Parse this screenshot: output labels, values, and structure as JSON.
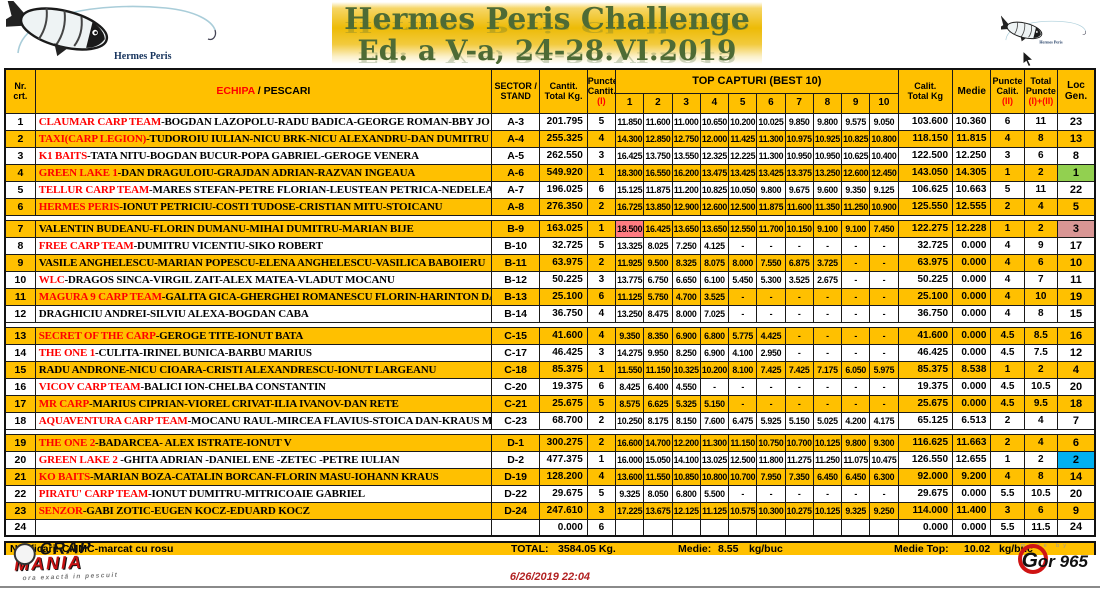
{
  "colors": {
    "accent_orange": "#FFC000",
    "team_red": "#FF0000",
    "rank1_green": "#92D050",
    "rank2_cyan": "#00B0F0",
    "rank3_rose": "#D99694",
    "big_fish_red": "#FF7C80",
    "title_green": "#4E6B35"
  },
  "header": {
    "title_line1": "Hermes Peris Challenge",
    "title_line2": "Ed. a V-a, 24-28.VI.2019",
    "logo_left_label": "Hermes Peris",
    "logo_right_label": "Hermes Peris"
  },
  "table": {
    "headers": {
      "nr": "Nr.\ncrt.",
      "echipa_red": "ECHIPA",
      "echipa_black": " / PESCARI",
      "sector": "SECTOR /\nSTAND",
      "cantit": "Cantit.\nTotal Kg.",
      "puncte_cantit": "Puncte\nCantit.",
      "puncte_cantit_sub": "(I)",
      "top_capturi": "TOP CAPTURI (BEST 10)",
      "capture_cols": [
        "1",
        "2",
        "3",
        "4",
        "5",
        "6",
        "7",
        "8",
        "9",
        "10"
      ],
      "calit": "Calit.\nTotal Kg",
      "medie": "Medie",
      "puncte_calit": "Puncte\nCalit.",
      "puncte_calit_sub": "(II)",
      "total_puncte": "Total\nPuncte",
      "total_puncte_sub": "(I)+(II)",
      "loc": "Loc\nGen."
    },
    "rows": [
      {
        "nr": "1",
        "team": "CLAUMAR CARP TEAM",
        "names": "-BOGDAN LAZOPOLU-RADU BADICA-GEORGE ROMAN-BBY JO",
        "sector": "A-3",
        "cantit": "201.795",
        "p1": "5",
        "captures": [
          "11.850",
          "11.600",
          "11.000",
          "10.650",
          "10.200",
          "10.025",
          "9.850",
          "9.800",
          "9.575",
          "9.050"
        ],
        "calit": "103.600",
        "medie": "10.360",
        "p2": "6",
        "total": "11",
        "loc": "23",
        "shaded": false
      },
      {
        "nr": "2",
        "team": "TAXI(CARP LEGION)",
        "names": "-TUDOROIU IULIAN-NICU BRK-NICU ALEXANDRU-DAN DUMITRU",
        "sector": "A-4",
        "cantit": "255.325",
        "p1": "4",
        "captures": [
          "14.300",
          "12.850",
          "12.750",
          "12.000",
          "11.425",
          "11.300",
          "10.975",
          "10.925",
          "10.825",
          "10.800"
        ],
        "calit": "118.150",
        "medie": "11.815",
        "p2": "4",
        "total": "8",
        "loc": "13",
        "shaded": true
      },
      {
        "nr": "3",
        "team": "K1 BAITS",
        "names": "-TATA NITU-BOGDAN BUCUR-POPA GABRIEL-GEROGE VENERA",
        "sector": "A-5",
        "cantit": "262.550",
        "p1": "3",
        "captures": [
          "16.425",
          "13.750",
          "13.550",
          "12.325",
          "12.225",
          "11.300",
          "10.950",
          "10.950",
          "10.625",
          "10.400"
        ],
        "calit": "122.500",
        "medie": "12.250",
        "p2": "3",
        "total": "6",
        "loc": "8",
        "shaded": false
      },
      {
        "nr": "4",
        "team": "GREEN LAKE 1",
        "names": "-DAN DRAGULOIU-GRAJDAN ADRIAN-RAZVAN INGEAUA",
        "sector": "A-6",
        "cantit": "549.920",
        "p1": "1",
        "captures": [
          "18.300",
          "16.550",
          "16.200",
          "13.475",
          "13.425",
          "13.425",
          "13.375",
          "13.250",
          "12.600",
          "12.450"
        ],
        "calit": "143.050",
        "medie": "14.305",
        "p2": "1",
        "total": "2",
        "loc": "1",
        "shaded": true,
        "loc_bg": "green"
      },
      {
        "nr": "5",
        "team": "TELLUR CARP TEAM",
        "names": "-MARES STEFAN-PETRE FLORIAN-LEUSTEAN PETRICA-NEDELEA BOGDAN",
        "sector": "A-7",
        "cantit": "196.025",
        "p1": "6",
        "captures": [
          "15.125",
          "11.875",
          "11.200",
          "10.825",
          "10.050",
          "9.800",
          "9.675",
          "9.600",
          "9.350",
          "9.125"
        ],
        "calit": "106.625",
        "medie": "10.663",
        "p2": "5",
        "total": "11",
        "loc": "22",
        "shaded": false
      },
      {
        "nr": "6",
        "team": "HERMES PERIS",
        "names": "-IONUT PETRICIU-COSTI TUDOSE-CRISTIAN MITU-STOICANU",
        "sector": "A-8",
        "cantit": "276.350",
        "p1": "2",
        "captures": [
          "16.725",
          "13.850",
          "12.900",
          "12.600",
          "12.500",
          "11.875",
          "11.600",
          "11.350",
          "11.250",
          "10.900"
        ],
        "calit": "125.550",
        "medie": "12.555",
        "p2": "2",
        "total": "4",
        "loc": "5",
        "shaded": true
      },
      {
        "nr": "7",
        "team": null,
        "names": "VALENTIN BUDEANU-FLORIN DUMANU-MIHAI DUMITRU-MARIAN BIJE",
        "sector": "B-9",
        "cantit": "163.025",
        "p1": "1",
        "captures": [
          "18.500",
          "16.425",
          "13.650",
          "13.650",
          "12.550",
          "11.700",
          "10.150",
          "9.100",
          "9.100",
          "7.450"
        ],
        "calit": "122.275",
        "medie": "12.228",
        "p2": "1",
        "total": "2",
        "loc": "3",
        "shaded": true,
        "loc_bg": "rose",
        "big_fish": 0,
        "sector_break": true
      },
      {
        "nr": "8",
        "team": "FREE CARP TEAM",
        "names": "-DUMITRU VICENTIU-SIKO ROBERT",
        "sector": "B-10",
        "cantit": "32.725",
        "p1": "5",
        "captures": [
          "13.325",
          "8.025",
          "7.250",
          "4.125",
          "-",
          "-",
          "-",
          "-",
          "-",
          "-"
        ],
        "calit": "32.725",
        "medie": "0.000",
        "p2": "4",
        "total": "9",
        "loc": "17",
        "shaded": false
      },
      {
        "nr": "9",
        "team": null,
        "names": "VASILE ANGHELESCU-MARIAN POPESCU-ELENA ANGHELESCU-VASILICA BABOIERU",
        "sector": "B-11",
        "cantit": "63.975",
        "p1": "2",
        "captures": [
          "11.925",
          "9.500",
          "8.325",
          "8.075",
          "8.000",
          "7.550",
          "6.875",
          "3.725",
          "-",
          "-"
        ],
        "calit": "63.975",
        "medie": "0.000",
        "p2": "4",
        "total": "6",
        "loc": "10",
        "shaded": true
      },
      {
        "nr": "10",
        "team": "WLC",
        "names": "-DRAGOS SINCA-VIRGIL ZAIT-ALEX MATEA-VLADUT MOCANU",
        "sector": "B-12",
        "cantit": "50.225",
        "p1": "3",
        "captures": [
          "13.775",
          "6.750",
          "6.650",
          "6.100",
          "5.450",
          "5.300",
          "3.525",
          "2.675",
          "-",
          "-"
        ],
        "calit": "50.225",
        "medie": "0.000",
        "p2": "4",
        "total": "7",
        "loc": "11",
        "shaded": false
      },
      {
        "nr": "11",
        "team": "MAGURA 9 CARP TEAM",
        "names": "-GALITA GICA-GHERGHEI ROMANESCU FLORIN-HARINTON DAN",
        "sector": "B-13",
        "cantit": "25.100",
        "p1": "6",
        "captures": [
          "11.125",
          "5.750",
          "4.700",
          "3.525",
          "-",
          "-",
          "-",
          "-",
          "-",
          "-"
        ],
        "calit": "25.100",
        "medie": "0.000",
        "p2": "4",
        "total": "10",
        "loc": "19",
        "shaded": true
      },
      {
        "nr": "12",
        "team": null,
        "names": "DRAGHICIU ANDREI-SILVIU ALEXA-BOGDAN CABA",
        "sector": "B-14",
        "cantit": "36.750",
        "p1": "4",
        "captures": [
          "13.250",
          "8.475",
          "8.000",
          "7.025",
          "-",
          "-",
          "-",
          "-",
          "-",
          "-"
        ],
        "calit": "36.750",
        "medie": "0.000",
        "p2": "4",
        "total": "8",
        "loc": "15",
        "shaded": false
      },
      {
        "nr": "13",
        "team": "SECRET OF THE CARP",
        "names": "-GEROGE TITE-IONUT BATA",
        "sector": "C-15",
        "cantit": "41.600",
        "p1": "4",
        "captures": [
          "9.350",
          "8.350",
          "6.900",
          "6.800",
          "5.775",
          "4.425",
          "-",
          "-",
          "-",
          "-"
        ],
        "calit": "41.600",
        "medie": "0.000",
        "p2": "4.5",
        "total": "8.5",
        "loc": "16",
        "shaded": true,
        "sector_break": true
      },
      {
        "nr": "14",
        "team": "THE ONE 1",
        "names": "-CULITA-IRINEL BUNICA-BARBU MARIUS",
        "sector": "C-17",
        "cantit": "46.425",
        "p1": "3",
        "captures": [
          "14.275",
          "9.950",
          "8.250",
          "6.900",
          "4.100",
          "2.950",
          "-",
          "-",
          "-",
          "-"
        ],
        "calit": "46.425",
        "medie": "0.000",
        "p2": "4.5",
        "total": "7.5",
        "loc": "12",
        "shaded": false
      },
      {
        "nr": "15",
        "team": null,
        "names": "RADU ANDRONE-NICU CIOARA-CRISTI ALEXANDRESCU-IONUT LARGEANU",
        "sector": "C-18",
        "cantit": "85.375",
        "p1": "1",
        "captures": [
          "11.550",
          "11.150",
          "10.325",
          "10.200",
          "8.100",
          "7.425",
          "7.425",
          "7.175",
          "6.050",
          "5.975"
        ],
        "calit": "85.375",
        "medie": "8.538",
        "p2": "1",
        "total": "2",
        "loc": "4",
        "shaded": true
      },
      {
        "nr": "16",
        "team": "VICOV CARP TEAM",
        "names": "-BALICI ION-CHELBA CONSTANTIN",
        "sector": "C-20",
        "cantit": "19.375",
        "p1": "6",
        "captures": [
          "8.425",
          "6.400",
          "4.550",
          "-",
          "-",
          "-",
          "-",
          "-",
          "-",
          "-"
        ],
        "calit": "19.375",
        "medie": "0.000",
        "p2": "4.5",
        "total": "10.5",
        "loc": "20",
        "shaded": false
      },
      {
        "nr": "17",
        "team": "MR CARP",
        "names": "-MARIUS CIPRIAN-VIOREL CRIVAT-ILIA IVANOV-DAN RETE",
        "sector": "C-21",
        "cantit": "25.675",
        "p1": "5",
        "captures": [
          "8.575",
          "6.625",
          "5.325",
          "5.150",
          "-",
          "-",
          "-",
          "-",
          "-",
          "-"
        ],
        "calit": "25.675",
        "medie": "0.000",
        "p2": "4.5",
        "total": "9.5",
        "loc": "18",
        "shaded": true
      },
      {
        "nr": "18",
        "team": "AQUAVENTURA CARP TEAM",
        "names": "-MOCANU RAUL-MIRCEA FLAVIUS-STOICA DAN-KRAUS MIHAI",
        "sector": "C-23",
        "cantit": "68.700",
        "p1": "2",
        "captures": [
          "10.250",
          "8.175",
          "8.150",
          "7.600",
          "6.475",
          "5.925",
          "5.150",
          "5.025",
          "4.200",
          "4.175"
        ],
        "calit": "65.125",
        "medie": "6.513",
        "p2": "2",
        "total": "4",
        "loc": "7",
        "shaded": false
      },
      {
        "nr": "19",
        "team": "THE ONE 2",
        "names": "-BADARCEA- ALEX ISTRATE-IONUT V",
        "sector": "D-1",
        "cantit": "300.275",
        "p1": "2",
        "captures": [
          "16.600",
          "14.700",
          "12.200",
          "11.300",
          "11.150",
          "10.750",
          "10.700",
          "10.125",
          "9.800",
          "9.300"
        ],
        "calit": "116.625",
        "medie": "11.663",
        "p2": "2",
        "total": "4",
        "loc": "6",
        "shaded": true,
        "sector_break": true
      },
      {
        "nr": "20",
        "team": "GREEN LAKE 2",
        "names": " -GHITA ADRIAN -DANIEL ENE -ZETEC -PETRE IULIAN",
        "sector": "D-2",
        "cantit": "477.375",
        "p1": "1",
        "captures": [
          "16.000",
          "15.050",
          "14.100",
          "13.025",
          "12.500",
          "11.800",
          "11.275",
          "11.250",
          "11.075",
          "10.475"
        ],
        "calit": "126.550",
        "medie": "12.655",
        "p2": "1",
        "total": "2",
        "loc": "2",
        "shaded": false,
        "loc_bg": "cyan"
      },
      {
        "nr": "21",
        "team": "KO BAITS",
        "names": "-MARIAN BOZA-CATALIN BORCAN-FLORIN MASU-IOHANN KRAUS",
        "sector": "D-19",
        "cantit": "128.200",
        "p1": "4",
        "captures": [
          "13.600",
          "11.550",
          "10.850",
          "10.800",
          "10.700",
          "7.950",
          "7.350",
          "6.450",
          "6.450",
          "6.300"
        ],
        "calit": "92.000",
        "medie": "9.200",
        "p2": "4",
        "total": "8",
        "loc": "14",
        "shaded": true
      },
      {
        "nr": "22",
        "team": "PIRATU' CARP TEAM",
        "names": "-IONUT DUMITRU-MITRICOAIE GABRIEL",
        "sector": "D-22",
        "cantit": "29.675",
        "p1": "5",
        "captures": [
          "9.325",
          "8.050",
          "6.800",
          "5.500",
          "-",
          "-",
          "-",
          "-",
          "-",
          "-"
        ],
        "calit": "29.675",
        "medie": "0.000",
        "p2": "5.5",
        "total": "10.5",
        "loc": "20",
        "shaded": false
      },
      {
        "nr": "23",
        "team": "SENZOR",
        "names": "-GABI ZOTIC-EUGEN KOCZ-EDUARD KOCZ",
        "sector": "D-24",
        "cantit": "247.610",
        "p1": "3",
        "captures": [
          "17.225",
          "13.675",
          "12.125",
          "11.125",
          "10.575",
          "10.300",
          "10.275",
          "10.125",
          "9.325",
          "9.250"
        ],
        "calit": "114.000",
        "medie": "11.400",
        "p2": "3",
        "total": "6",
        "loc": "9",
        "shaded": true
      },
      {
        "nr": "24",
        "team": null,
        "names": "",
        "sector": "",
        "cantit": "0.000",
        "p1": "6",
        "captures": [
          "",
          "",
          "",
          "",
          "",
          "",
          "",
          "",
          "",
          ""
        ],
        "calit": "0.000",
        "medie": "0.000",
        "p2": "5.5",
        "total": "11.5",
        "loc": "24",
        "shaded": false
      }
    ]
  },
  "footer": {
    "notificari": "Notificari: CMMC-marcat cu rosu",
    "total_label": "TOTAL:",
    "total_value": "3584.05  Kg.",
    "medie_label": "Medie:",
    "medie_value": "8.55",
    "medie_unit": "kg/buc",
    "medie_top_label": "Medie Top:",
    "medie_top_value": "10.02",
    "medie_top_unit": "kg/buc",
    "date": "6/26/2019 22:04",
    "crapmania": {
      "line1": "CRAP",
      "line2": "MANIA",
      "tagline": "ora exactă in pescuit"
    },
    "made_by": "made by",
    "gor_label": "or 965"
  }
}
